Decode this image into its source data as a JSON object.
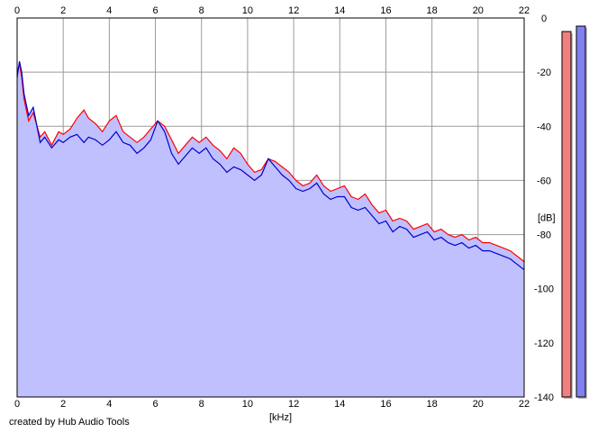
{
  "chart_data": {
    "type": "area",
    "xlabel": "[kHz]",
    "ylabel": "[dB]",
    "xlim": [
      0,
      22
    ],
    "ylim": [
      -140,
      0
    ],
    "x_ticks": [
      "0",
      "2",
      "4",
      "6",
      "8",
      "10",
      "12",
      "14",
      "16",
      "18",
      "20",
      "22"
    ],
    "y_ticks": [
      "0",
      "-20",
      "-40",
      "-60",
      "-80",
      "-100",
      "-120",
      "-140"
    ],
    "grid": true,
    "fill_color": "#c0c0ff",
    "series": [
      {
        "color": "#ff0000",
        "x": [
          0,
          0.1,
          0.2,
          0.3,
          0.5,
          0.7,
          1.0,
          1.2,
          1.5,
          1.8,
          2.0,
          2.3,
          2.6,
          2.9,
          3.1,
          3.4,
          3.7,
          4.0,
          4.3,
          4.6,
          4.9,
          5.2,
          5.5,
          5.8,
          6.1,
          6.4,
          6.7,
          7.0,
          7.3,
          7.6,
          7.9,
          8.2,
          8.5,
          8.8,
          9.1,
          9.4,
          9.7,
          10.0,
          10.3,
          10.6,
          10.9,
          11.2,
          11.5,
          11.8,
          12.1,
          12.4,
          12.7,
          13.0,
          13.3,
          13.6,
          13.9,
          14.2,
          14.5,
          14.8,
          15.1,
          15.4,
          15.7,
          16.0,
          16.3,
          16.6,
          16.9,
          17.2,
          17.5,
          17.8,
          18.1,
          18.4,
          18.7,
          19.0,
          19.3,
          19.6,
          19.9,
          20.2,
          20.5,
          20.8,
          21.1,
          21.4,
          21.7,
          22.0
        ],
        "y": [
          -20,
          -17,
          -22,
          -30,
          -38,
          -35,
          -44,
          -42,
          -47,
          -42,
          -43,
          -41,
          -37,
          -34,
          -37,
          -39,
          -42,
          -38,
          -36,
          -42,
          -44,
          -46,
          -44,
          -41,
          -38,
          -40,
          -45,
          -50,
          -47,
          -44,
          -46,
          -44,
          -47,
          -49,
          -52,
          -48,
          -50,
          -54,
          -57,
          -56,
          -52,
          -53,
          -55,
          -57,
          -60,
          -62,
          -61,
          -58,
          -62,
          -64,
          -63,
          -62,
          -66,
          -67,
          -65,
          -69,
          -72,
          -71,
          -75,
          -74,
          -75,
          -78,
          -77,
          -76,
          -79,
          -78,
          -80,
          -81,
          -80,
          -82,
          -81,
          -83,
          -83,
          -84,
          -85,
          -86,
          -88,
          -90
        ]
      },
      {
        "color": "#0000cc",
        "x": [
          0,
          0.1,
          0.2,
          0.3,
          0.5,
          0.7,
          1.0,
          1.2,
          1.5,
          1.8,
          2.0,
          2.3,
          2.6,
          2.9,
          3.1,
          3.4,
          3.7,
          4.0,
          4.3,
          4.6,
          4.9,
          5.2,
          5.5,
          5.8,
          6.1,
          6.4,
          6.7,
          7.0,
          7.3,
          7.6,
          7.9,
          8.2,
          8.5,
          8.8,
          9.1,
          9.4,
          9.7,
          10.0,
          10.3,
          10.6,
          10.9,
          11.2,
          11.5,
          11.8,
          12.1,
          12.4,
          12.7,
          13.0,
          13.3,
          13.6,
          13.9,
          14.2,
          14.5,
          14.8,
          15.1,
          15.4,
          15.7,
          16.0,
          16.3,
          16.6,
          16.9,
          17.2,
          17.5,
          17.8,
          18.1,
          18.4,
          18.7,
          19.0,
          19.3,
          19.6,
          19.9,
          20.2,
          20.5,
          20.8,
          21.1,
          21.4,
          21.7,
          22.0
        ],
        "y": [
          -22,
          -16,
          -20,
          -28,
          -36,
          -33,
          -46,
          -44,
          -48,
          -45,
          -46,
          -44,
          -43,
          -46,
          -44,
          -45,
          -47,
          -45,
          -42,
          -46,
          -47,
          -50,
          -48,
          -45,
          -38,
          -42,
          -50,
          -54,
          -51,
          -48,
          -50,
          -48,
          -52,
          -54,
          -57,
          -55,
          -56,
          -58,
          -60,
          -58,
          -52,
          -55,
          -58,
          -60,
          -63,
          -64,
          -63,
          -61,
          -65,
          -67,
          -66,
          -66,
          -70,
          -71,
          -70,
          -73,
          -76,
          -75,
          -79,
          -77,
          -78,
          -81,
          -80,
          -79,
          -82,
          -81,
          -83,
          -84,
          -83,
          -85,
          -84,
          -86,
          -86,
          -87,
          -88,
          -89,
          -91,
          -93
        ]
      }
    ],
    "level_meters": [
      {
        "color": "#f08080",
        "level_db": -5
      },
      {
        "color": "#8080f0",
        "level_db": -3
      }
    ]
  },
  "credit": "created by Hub Audio Tools"
}
